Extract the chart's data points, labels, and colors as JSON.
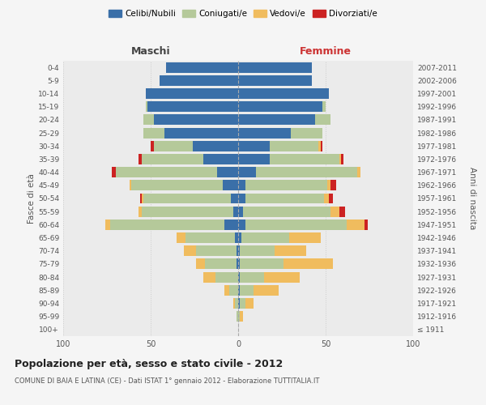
{
  "age_groups": [
    "100+",
    "95-99",
    "90-94",
    "85-89",
    "80-84",
    "75-79",
    "70-74",
    "65-69",
    "60-64",
    "55-59",
    "50-54",
    "45-49",
    "40-44",
    "35-39",
    "30-34",
    "25-29",
    "20-24",
    "15-19",
    "10-14",
    "5-9",
    "0-4"
  ],
  "birth_years": [
    "≤ 1911",
    "1912-1916",
    "1917-1921",
    "1922-1926",
    "1927-1931",
    "1932-1936",
    "1937-1941",
    "1942-1946",
    "1947-1951",
    "1952-1956",
    "1957-1961",
    "1962-1966",
    "1967-1971",
    "1972-1976",
    "1977-1981",
    "1982-1986",
    "1987-1991",
    "1992-1996",
    "1997-2001",
    "2002-2006",
    "2007-2011"
  ],
  "male": {
    "celibi": [
      0,
      0,
      0,
      0,
      0,
      1,
      1,
      2,
      8,
      3,
      4,
      9,
      12,
      20,
      26,
      42,
      48,
      52,
      53,
      45,
      41
    ],
    "coniugati": [
      0,
      1,
      2,
      5,
      13,
      18,
      23,
      28,
      65,
      52,
      50,
      52,
      58,
      35,
      22,
      12,
      6,
      1,
      0,
      0,
      0
    ],
    "vedovi": [
      0,
      0,
      1,
      3,
      7,
      5,
      7,
      5,
      3,
      2,
      1,
      1,
      0,
      0,
      0,
      0,
      0,
      0,
      0,
      0,
      0
    ],
    "divorziati": [
      0,
      0,
      0,
      0,
      0,
      0,
      0,
      0,
      0,
      0,
      1,
      0,
      2,
      2,
      2,
      0,
      0,
      0,
      0,
      0,
      0
    ]
  },
  "female": {
    "nubili": [
      0,
      0,
      1,
      1,
      1,
      1,
      1,
      2,
      4,
      3,
      4,
      4,
      10,
      18,
      18,
      30,
      44,
      48,
      52,
      42,
      42
    ],
    "coniugate": [
      0,
      1,
      3,
      8,
      14,
      25,
      20,
      27,
      58,
      50,
      45,
      47,
      58,
      40,
      28,
      18,
      9,
      2,
      0,
      0,
      0
    ],
    "vedove": [
      0,
      2,
      5,
      14,
      20,
      28,
      18,
      18,
      10,
      5,
      3,
      2,
      2,
      1,
      1,
      0,
      0,
      0,
      0,
      0,
      0
    ],
    "divorziate": [
      0,
      0,
      0,
      0,
      0,
      0,
      0,
      0,
      2,
      3,
      2,
      3,
      0,
      1,
      1,
      0,
      0,
      0,
      0,
      0,
      0
    ]
  },
  "colors": {
    "celibi_nubili": "#3a6fa8",
    "coniugati": "#b5c99a",
    "vedovi": "#f0bc5e",
    "divorziati": "#cc2222"
  },
  "xlim": 100,
  "title": "Popolazione per età, sesso e stato civile - 2012",
  "subtitle": "COMUNE DI BAIA E LATINA (CE) - Dati ISTAT 1° gennaio 2012 - Elaborazione TUTTITALIA.IT",
  "ylabel_left": "Fasce di età",
  "ylabel_right": "Anni di nascita",
  "xlabel_maschi": "Maschi",
  "xlabel_femmine": "Femmine",
  "legend_labels": [
    "Celibi/Nubili",
    "Coniugati/e",
    "Vedovi/e",
    "Divorziati/e"
  ],
  "bg_color": "#f5f5f5",
  "plot_bg": "#ebebeb"
}
